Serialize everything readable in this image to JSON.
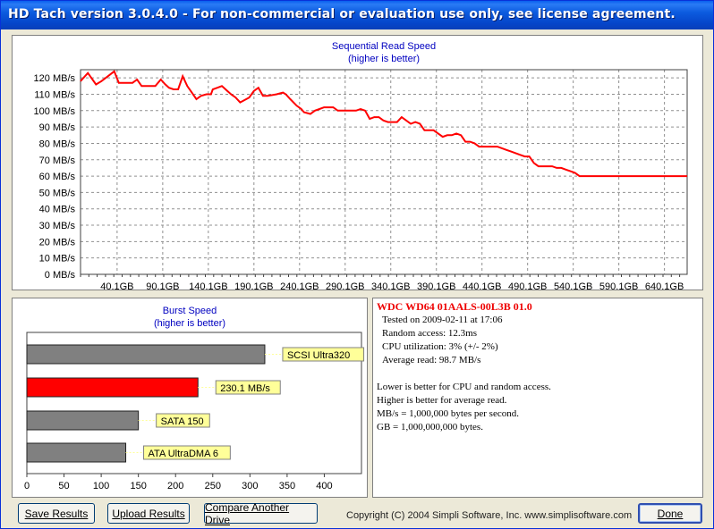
{
  "window": {
    "title": "HD Tach version 3.0.4.0  - For non-commercial or evaluation use only, see license agreement."
  },
  "read_chart": {
    "title": "Sequential Read Speed",
    "subtitle": "(higher is better)"
  },
  "burst_chart": {
    "title": "Burst Speed",
    "subtitle": "(higher is better)"
  },
  "chart_data": [
    {
      "type": "line",
      "title": "Sequential Read Speed",
      "subtitle": "(higher is better)",
      "xlabel": "",
      "ylabel": "",
      "ylim": [
        0,
        125
      ],
      "xlim": [
        0,
        665
      ],
      "y_ticks": [
        "0 MB/s",
        "10 MB/s",
        "20 MB/s",
        "30 MB/s",
        "40 MB/s",
        "50 MB/s",
        "60 MB/s",
        "70 MB/s",
        "80 MB/s",
        "90 MB/s",
        "100 MB/s",
        "110 MB/s",
        "120 MB/s"
      ],
      "x_ticks": [
        "40.1GB",
        "90.1GB",
        "140.1GB",
        "190.1GB",
        "240.1GB",
        "290.1GB",
        "340.1GB",
        "390.1GB",
        "440.1GB",
        "490.1GB",
        "540.1GB",
        "590.1GB",
        "640.1GB"
      ],
      "x_tick_values": [
        40.1,
        90.1,
        140.1,
        190.1,
        240.1,
        290.1,
        340.1,
        390.1,
        440.1,
        490.1,
        540.1,
        590.1,
        640.1
      ],
      "grid": true,
      "color": "#ff0000",
      "series": [
        {
          "x": [
            0,
            8,
            17,
            23,
            30,
            37,
            42,
            57,
            62,
            67,
            72,
            82,
            88,
            93,
            97,
            102,
            107,
            112,
            117,
            122,
            127,
            132,
            138,
            143,
            145,
            150,
            155,
            165,
            170,
            175,
            185,
            190,
            195,
            200,
            205,
            215,
            222,
            225,
            230,
            237,
            242,
            245,
            252,
            257,
            262,
            267,
            272,
            277,
            282,
            287,
            292,
            297,
            302,
            307,
            312,
            317,
            322,
            327,
            332,
            337,
            342,
            347,
            352,
            357,
            362,
            367,
            372,
            377,
            382,
            387,
            392,
            397,
            402,
            407,
            412,
            417,
            422,
            427,
            432,
            437,
            442,
            447,
            452,
            457,
            462,
            467,
            472,
            477,
            482,
            487,
            492,
            497,
            502,
            507,
            512,
            517,
            522,
            527,
            532,
            537,
            542,
            547,
            552,
            557,
            562,
            567,
            572,
            577,
            582,
            587,
            592,
            597,
            602,
            607,
            612,
            617,
            622,
            627,
            632,
            637,
            642,
            647,
            652,
            657,
            662,
            665
          ],
          "y": [
            118,
            123,
            116,
            118,
            121,
            124,
            117,
            117,
            119,
            115,
            115,
            115,
            119,
            116,
            114,
            113,
            113,
            121,
            115,
            111,
            107,
            109,
            110,
            110,
            113,
            114,
            115,
            110,
            108,
            105,
            108,
            112,
            114,
            109,
            109,
            110,
            111,
            110,
            107,
            103,
            101,
            99,
            98,
            100,
            101,
            102,
            102,
            102,
            100,
            100,
            100,
            100,
            100,
            101,
            100,
            95,
            96,
            96,
            94,
            93,
            93,
            93,
            96,
            94,
            92,
            93,
            92,
            88,
            88,
            88,
            86,
            84,
            85,
            85,
            86,
            85,
            81,
            81,
            80,
            78,
            78,
            78,
            78,
            78,
            77,
            76,
            75,
            74,
            73,
            72,
            72,
            68,
            66,
            66,
            66,
            66,
            65,
            65,
            64,
            63,
            62,
            60,
            60,
            60,
            60,
            60,
            60,
            60,
            60,
            60,
            60,
            60,
            60,
            60,
            60,
            60,
            60,
            60,
            60,
            60,
            60,
            60,
            60,
            60,
            60,
            60
          ]
        }
      ]
    },
    {
      "type": "bar",
      "title": "Burst Speed",
      "subtitle": "(higher is better)",
      "orientation": "horizontal",
      "xlim": [
        0,
        450
      ],
      "x_ticks": [
        "0",
        "50",
        "100",
        "150",
        "200",
        "250",
        "300",
        "350",
        "400"
      ],
      "x_tick_values": [
        0,
        50,
        100,
        150,
        200,
        250,
        300,
        350,
        400
      ],
      "categories": [
        "SCSI Ultra320",
        "230.1 MB/s",
        "SATA 150",
        "ATA UltraDMA 6"
      ],
      "values": [
        320,
        230.1,
        150,
        133
      ],
      "colors": [
        "#808080",
        "#ff0000",
        "#808080",
        "#808080"
      ],
      "label_bg": "#ffff99"
    }
  ],
  "info": {
    "drive_name": "WDC WD64 01AALS-00L3B 01.0",
    "lines": [
      "Tested on 2009-02-11 at 17:06",
      "Random access: 12.3ms",
      "CPU utilization: 3% (+/- 2%)",
      "Average read: 98.7 MB/s"
    ],
    "notes": [
      "Lower is better for CPU and random access.",
      "Higher is better for average read.",
      "MB/s = 1,000,000 bytes per second.",
      "GB = 1,000,000,000 bytes."
    ]
  },
  "buttons": {
    "save": "Save Results",
    "upload": "Upload Results",
    "compare": "Compare Another Drive",
    "done": "Done"
  },
  "copyright": "Copyright (C) 2004 Simpli Software, Inc. www.simplisoftware.com",
  "colors": {
    "titlebar": "#0545c9",
    "line": "#ff0000",
    "accent_text": "#0000c0",
    "drive_name": "#e00000"
  }
}
